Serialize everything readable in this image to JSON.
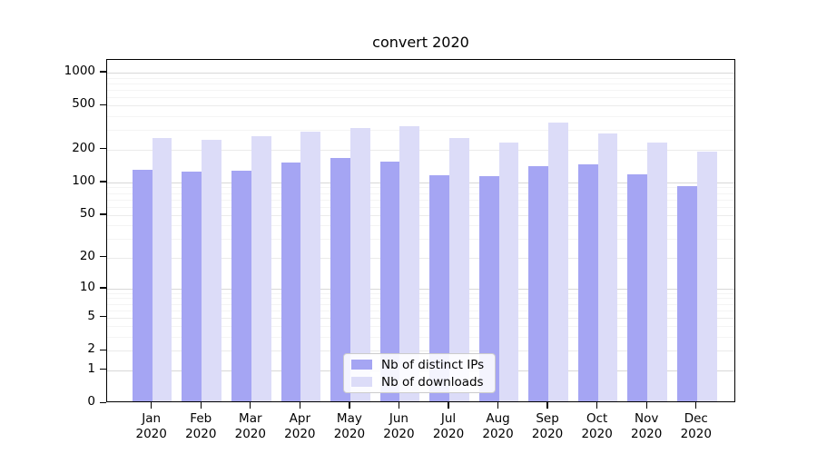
{
  "chart_data": {
    "type": "bar",
    "title": "convert 2020",
    "categories": [
      "Jan",
      "Feb",
      "Mar",
      "Apr",
      "May",
      "Jun",
      "Jul",
      "Aug",
      "Sep",
      "Oct",
      "Nov",
      "Dec"
    ],
    "year_label": "2020",
    "series": [
      {
        "name": "Nb of distinct IPs",
        "color": "#a5a5f3",
        "values": [
          126,
          121,
          123,
          146,
          161,
          149,
          112,
          110,
          135,
          142,
          114,
          89
        ]
      },
      {
        "name": "Nb of downloads",
        "color": "#dcdcf8",
        "values": [
          245,
          235,
          253,
          278,
          300,
          315,
          243,
          224,
          340,
          268,
          221,
          185
        ]
      }
    ],
    "xlabel": "",
    "ylabel": "",
    "yscale": "log(1+y)",
    "yticks": [
      0,
      1,
      2,
      5,
      10,
      20,
      50,
      100,
      200,
      500,
      1000
    ],
    "minor_yticks": [
      3,
      4,
      6,
      7,
      8,
      9,
      30,
      40,
      60,
      70,
      80,
      90,
      300,
      400,
      600,
      700,
      800,
      900
    ],
    "ylim": [
      0,
      1300
    ],
    "grid": true,
    "legend_position": "lower center"
  },
  "colors": {
    "background": "#ffffff",
    "spine": "#000000",
    "grid_decade": "#d8d8d8",
    "grid_major": "#ebebeb",
    "grid_minor": "#f4f4f4",
    "bar_ips": "#a5a5f3",
    "bar_downloads": "#dcdcf8",
    "tick_label": "#000000"
  }
}
